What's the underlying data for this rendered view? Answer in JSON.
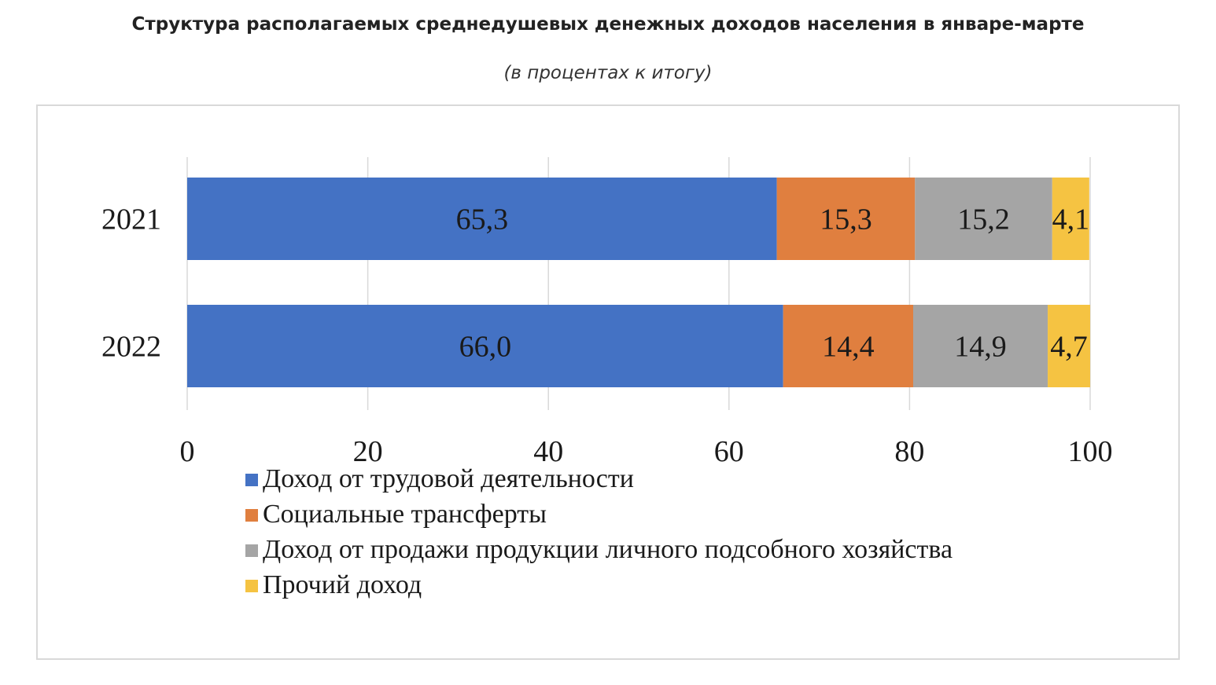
{
  "title": "Структура располагаемых среднедушевых денежных доходов населения в январе-марте",
  "subtitle": "(в процентах к итогу)",
  "chart_data": {
    "type": "bar",
    "orientation": "horizontal",
    "stacked": true,
    "categories": [
      "2021",
      "2022"
    ],
    "series": [
      {
        "name": "Доход от трудовой деятельности",
        "values": [
          65.3,
          66.0
        ],
        "labels": [
          "65,3",
          "66,0"
        ],
        "color": "#4472c4"
      },
      {
        "name": "Социальные трансферты",
        "values": [
          15.3,
          14.4
        ],
        "labels": [
          "15,3",
          "14,4"
        ],
        "color": "#e07f3f"
      },
      {
        "name": "Доход от продажи продукции личного подсобного хозяйства",
        "values": [
          15.2,
          14.9
        ],
        "labels": [
          "15,2",
          "14,9"
        ],
        "color": "#a5a5a5"
      },
      {
        "name": "Прочий доход",
        "values": [
          4.1,
          4.7
        ],
        "labels": [
          "4,1",
          "4,7"
        ],
        "color": "#f5c342"
      }
    ],
    "xlim": [
      0,
      100
    ],
    "xticks": [
      0,
      20,
      40,
      60,
      80,
      100
    ],
    "grid": true,
    "legend_position": "bottom-left"
  }
}
